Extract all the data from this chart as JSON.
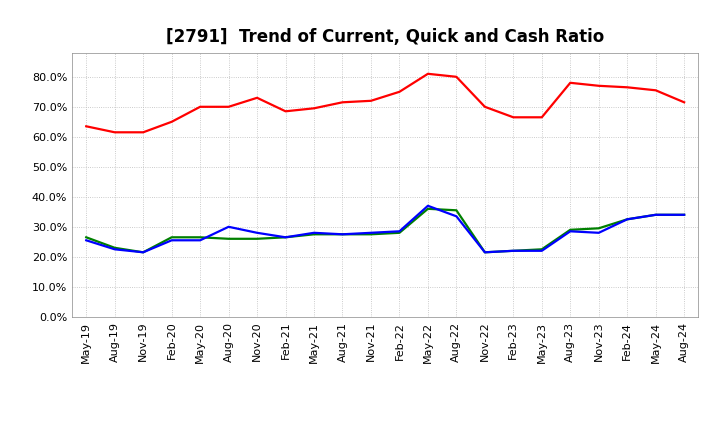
{
  "title": "[2791]  Trend of Current, Quick and Cash Ratio",
  "x_labels": [
    "May-19",
    "Aug-19",
    "Nov-19",
    "Feb-20",
    "May-20",
    "Aug-20",
    "Nov-20",
    "Feb-21",
    "May-21",
    "Aug-21",
    "Nov-21",
    "Feb-22",
    "May-22",
    "Aug-22",
    "Nov-22",
    "Feb-23",
    "May-23",
    "Aug-23",
    "Nov-23",
    "Feb-24",
    "May-24",
    "Aug-24"
  ],
  "current_ratio": [
    63.5,
    61.5,
    61.5,
    65.0,
    70.0,
    70.0,
    73.0,
    68.5,
    69.5,
    71.5,
    72.0,
    75.0,
    81.0,
    80.0,
    70.0,
    66.5,
    66.5,
    78.0,
    77.0,
    76.5,
    75.5,
    71.5
  ],
  "quick_ratio": [
    26.5,
    23.0,
    21.5,
    26.5,
    26.5,
    26.0,
    26.0,
    26.5,
    27.5,
    27.5,
    27.5,
    28.0,
    36.0,
    35.5,
    21.5,
    22.0,
    22.5,
    29.0,
    29.5,
    32.5,
    34.0,
    34.0
  ],
  "cash_ratio": [
    25.5,
    22.5,
    21.5,
    25.5,
    25.5,
    30.0,
    28.0,
    26.5,
    28.0,
    27.5,
    28.0,
    28.5,
    37.0,
    33.5,
    21.5,
    22.0,
    22.0,
    28.5,
    28.0,
    32.5,
    34.0,
    34.0
  ],
  "current_color": "#FF0000",
  "quick_color": "#008000",
  "cash_color": "#0000FF",
  "bg_color": "#FFFFFF",
  "plot_bg_color": "#FFFFFF",
  "grid_color": "#BBBBBB",
  "ylim": [
    0,
    88
  ],
  "yticks": [
    0,
    10,
    20,
    30,
    40,
    50,
    60,
    70,
    80
  ],
  "line_width": 1.6,
  "title_fontsize": 12,
  "legend_fontsize": 9.5,
  "tick_fontsize": 8
}
